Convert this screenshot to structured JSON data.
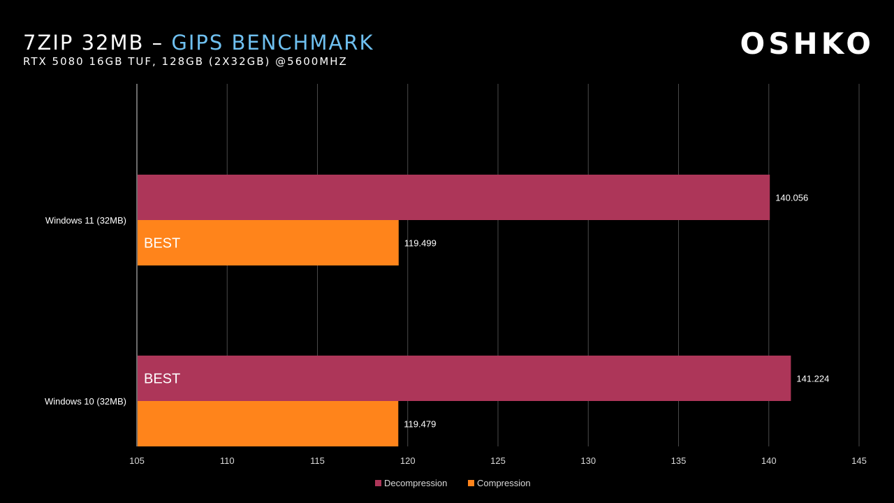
{
  "header": {
    "title_main": "7ZIP 32MB – ",
    "title_accent": "GIPS BENCHMARK",
    "subtitle": "RTX 5080 16GB TUF, 128GB (2X32GB) @5600MHZ",
    "brand": "OSHKO"
  },
  "colors": {
    "decompression": "#ad3659",
    "compression": "#ff841b",
    "accent": "#6fc0f0",
    "grid": "#4a4a4a"
  },
  "chart_data": {
    "type": "bar",
    "orientation": "horizontal",
    "categories": [
      "Windows 11 (32MB)",
      "Windows 10 (32MB)"
    ],
    "series": [
      {
        "name": "Decompression",
        "values": [
          140.056,
          141.224
        ],
        "labels": [
          "140.056",
          "141.224"
        ]
      },
      {
        "name": "Compression",
        "values": [
          119.499,
          119.479
        ],
        "labels": [
          "119.499",
          "119.479"
        ]
      }
    ],
    "annotations": [
      {
        "category": 0,
        "series": 1,
        "text": "BEST"
      },
      {
        "category": 1,
        "series": 0,
        "text": "BEST"
      }
    ],
    "xlim": [
      105,
      145
    ],
    "xticks": [
      "105",
      "110",
      "115",
      "120",
      "125",
      "130",
      "135",
      "140",
      "145"
    ],
    "grid": true,
    "legend": "bottom"
  }
}
